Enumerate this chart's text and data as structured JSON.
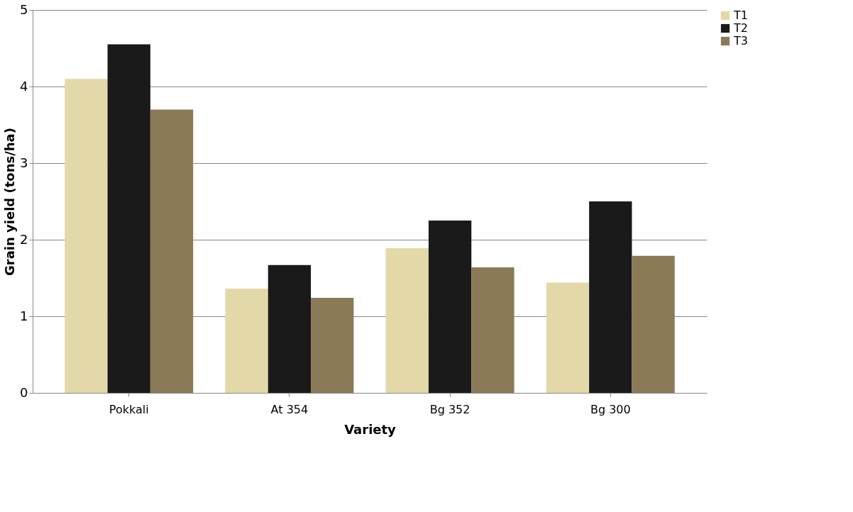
{
  "chart_data": {
    "type": "bar",
    "xlabel": "Variety",
    "ylabel": "Grain yield (tons/ha)",
    "categories": [
      "Pokkali",
      "At 354",
      "Bg 352",
      "Bg 300"
    ],
    "series": [
      {
        "name": "T1",
        "color": "#e3d8a8",
        "values": [
          4.1,
          1.36,
          1.89,
          1.44
        ]
      },
      {
        "name": "T2",
        "color": "#1a1a1a",
        "values": [
          4.55,
          1.67,
          2.25,
          2.5
        ]
      },
      {
        "name": "T3",
        "color": "#8a7a58",
        "values": [
          3.7,
          1.24,
          1.64,
          1.79
        ]
      }
    ],
    "ylim": [
      0,
      5
    ],
    "yticks": [
      0,
      1,
      2,
      3,
      4,
      5
    ],
    "grid": "y",
    "legend": "right"
  }
}
